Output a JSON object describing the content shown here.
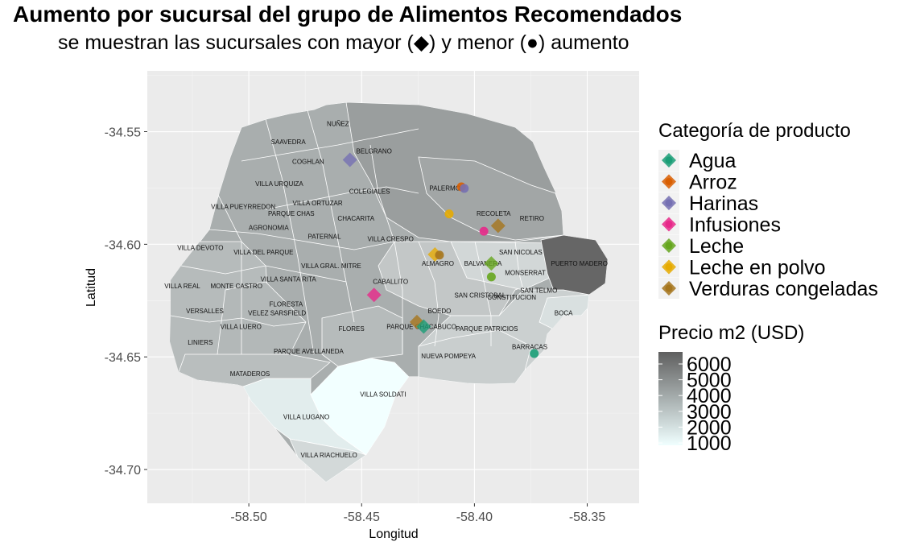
{
  "title": "Aumento por sucursal del grupo de Alimentos Recomendados",
  "subtitle": "se muestran las sucursales con mayor (◆) y menor (●) aumento",
  "axes": {
    "x_label": "Longitud",
    "y_label": "Latitud",
    "x_ticks": [
      "-58.50",
      "-58.45",
      "-58.40",
      "-58.35"
    ],
    "y_ticks": [
      "-34.55",
      "-34.60",
      "-34.65",
      "-34.70"
    ],
    "xlim": [
      -58.545,
      -58.327
    ],
    "ylim": [
      -34.715,
      -34.523
    ]
  },
  "legend_categoria": {
    "title": "Categoría de producto",
    "items": [
      {
        "label": "Agua",
        "color": "#1B9E77"
      },
      {
        "label": "Arroz",
        "color": "#D95F02"
      },
      {
        "label": "Harinas",
        "color": "#7570B3"
      },
      {
        "label": "Infusiones",
        "color": "#E7298A"
      },
      {
        "label": "Leche",
        "color": "#66A61E"
      },
      {
        "label": "Leche en polvo",
        "color": "#E6AB02"
      },
      {
        "label": "Verduras congeladas",
        "color": "#A6761D"
      }
    ]
  },
  "legend_precio": {
    "title": "Precio m2 (USD)",
    "labels": [
      "6000",
      "5000",
      "4000",
      "3000",
      "2000",
      "1000"
    ],
    "color_low": "#F0FFFF",
    "color_high": "#5F5F5F"
  },
  "barrios": [
    {
      "name": "NUÑEZ",
      "lon": -58.4605,
      "lat": -34.5465
    },
    {
      "name": "SAAVEDRA",
      "lon": -58.4825,
      "lat": -34.5545
    },
    {
      "name": "BELGRANO",
      "lon": -58.4445,
      "lat": -34.5585
    },
    {
      "name": "COGHLAN",
      "lon": -58.4737,
      "lat": -34.5633
    },
    {
      "name": "VILLA URQUIZA",
      "lon": -58.4865,
      "lat": -34.5731
    },
    {
      "name": "COLEGIALES",
      "lon": -58.4465,
      "lat": -34.5765
    },
    {
      "name": "PALERMO",
      "lon": -58.4131,
      "lat": -34.5751
    },
    {
      "name": "VILLA ORTUZAR",
      "lon": -58.4695,
      "lat": -34.5816
    },
    {
      "name": "VILLA PUEYRREDON",
      "lon": -58.5025,
      "lat": -34.5832
    },
    {
      "name": "PARQUE CHAS",
      "lon": -58.4812,
      "lat": -34.5862
    },
    {
      "name": "RECOLETA",
      "lon": -58.3915,
      "lat": -34.5862
    },
    {
      "name": "CHACARITA",
      "lon": -58.4525,
      "lat": -34.5885
    },
    {
      "name": "RETIRO",
      "lon": -58.3745,
      "lat": -34.5885
    },
    {
      "name": "AGRONOMIA",
      "lon": -58.4912,
      "lat": -34.5925
    },
    {
      "name": "PATERNAL",
      "lon": -58.4665,
      "lat": -34.5965
    },
    {
      "name": "VILLA CRESPO",
      "lon": -58.4372,
      "lat": -34.5975
    },
    {
      "name": "VILLA DEVOTO",
      "lon": -58.5215,
      "lat": -34.6015
    },
    {
      "name": "VILLA DEL PARQUE",
      "lon": -58.4935,
      "lat": -34.6035
    },
    {
      "name": "SAN NICOLAS",
      "lon": -58.3795,
      "lat": -34.6035
    },
    {
      "name": "ALMAGRO",
      "lon": -58.4162,
      "lat": -34.6085
    },
    {
      "name": "BALVANERA",
      "lon": -58.3962,
      "lat": -34.6085
    },
    {
      "name": "VILLA GRAL. MITRE",
      "lon": -58.4635,
      "lat": -34.6095
    },
    {
      "name": "PUERTO MADERO",
      "lon": -58.3535,
      "lat": -34.6085
    },
    {
      "name": "MONSERRAT",
      "lon": -58.3775,
      "lat": -34.6125
    },
    {
      "name": "VILLA SANTA RITA",
      "lon": -58.4825,
      "lat": -34.6155
    },
    {
      "name": "CABALLITO",
      "lon": -58.4372,
      "lat": -34.6165
    },
    {
      "name": "VILLA REAL",
      "lon": -58.5295,
      "lat": -34.6185
    },
    {
      "name": "MONTE CASTRO",
      "lon": -58.5055,
      "lat": -34.6185
    },
    {
      "name": "SAN TELMO",
      "lon": -58.3715,
      "lat": -34.6205
    },
    {
      "name": "SAN CRISTOBAL",
      "lon": -58.3975,
      "lat": -34.6225
    },
    {
      "name": "CONSTITUCION",
      "lon": -58.3835,
      "lat": -34.6235
    },
    {
      "name": "FLORESTA",
      "lon": -58.4835,
      "lat": -34.6265
    },
    {
      "name": "BOEDO",
      "lon": -58.4155,
      "lat": -34.6295
    },
    {
      "name": "VERSALLES",
      "lon": -58.5195,
      "lat": -34.6295
    },
    {
      "name": "VELEZ SARSFIELD",
      "lon": -58.4875,
      "lat": -34.6305
    },
    {
      "name": "BOCA",
      "lon": -58.3605,
      "lat": -34.6305
    },
    {
      "name": "VILLA LUERO",
      "lon": -58.5035,
      "lat": -34.6365
    },
    {
      "name": "FLORES",
      "lon": -58.4545,
      "lat": -34.6375
    },
    {
      "name": "PARQUE CHACABUCO",
      "lon": -58.4235,
      "lat": -34.6365
    },
    {
      "name": "PARQUE PATRICIOS",
      "lon": -58.3945,
      "lat": -34.6375
    },
    {
      "name": "LINIERS",
      "lon": -58.5215,
      "lat": -34.6435
    },
    {
      "name": "BARRACAS",
      "lon": -58.3755,
      "lat": -34.6455
    },
    {
      "name": "PARQUE AVELLANEDA",
      "lon": -58.4735,
      "lat": -34.6475
    },
    {
      "name": "NUEVA POMPEYA",
      "lon": -58.4115,
      "lat": -34.6495
    },
    {
      "name": "MATADEROS",
      "lon": -58.4995,
      "lat": -34.6575
    },
    {
      "name": "VILLA SOLDATI",
      "lon": -58.4405,
      "lat": -34.6665
    },
    {
      "name": "VILLA LUGANO",
      "lon": -58.4745,
      "lat": -34.6765
    },
    {
      "name": "VILLA RIACHUELO",
      "lon": -58.4645,
      "lat": -34.6935
    }
  ],
  "sucursales": [
    {
      "categoria": "Harinas",
      "tipo": "mayor",
      "lon": -58.4552,
      "lat": -34.5625
    },
    {
      "categoria": "Arroz",
      "tipo": "menor",
      "lon": -58.4058,
      "lat": -34.5745
    },
    {
      "categoria": "Harinas",
      "tipo": "menor",
      "lon": -58.4045,
      "lat": -34.5752
    },
    {
      "categoria": "Leche en polvo",
      "tipo": "menor",
      "lon": -58.4112,
      "lat": -34.5865
    },
    {
      "categoria": "Infusiones",
      "tipo": "menor",
      "lon": -58.3958,
      "lat": -34.5942
    },
    {
      "categoria": "Verduras congeladas",
      "tipo": "mayor",
      "lon": -58.3895,
      "lat": -34.5918
    },
    {
      "categoria": "Leche en polvo",
      "tipo": "mayor",
      "lon": -58.4175,
      "lat": -34.6045
    },
    {
      "categoria": "Verduras congeladas",
      "tipo": "menor",
      "lon": -58.4155,
      "lat": -34.6048
    },
    {
      "categoria": "Leche",
      "tipo": "mayor",
      "lon": -58.3925,
      "lat": -34.6085
    },
    {
      "categoria": "Leche",
      "tipo": "menor",
      "lon": -58.3925,
      "lat": -34.6145
    },
    {
      "categoria": "Infusiones",
      "tipo": "mayor",
      "lon": -58.4445,
      "lat": -34.6225
    },
    {
      "categoria": "Verduras congeladas",
      "tipo": "mayor",
      "lon": -58.4255,
      "lat": -34.6345
    },
    {
      "categoria": "Agua",
      "tipo": "mayor",
      "lon": -58.4225,
      "lat": -34.6365
    },
    {
      "categoria": "Agua",
      "tipo": "menor",
      "lon": -58.3735,
      "lat": -34.6485
    }
  ]
}
